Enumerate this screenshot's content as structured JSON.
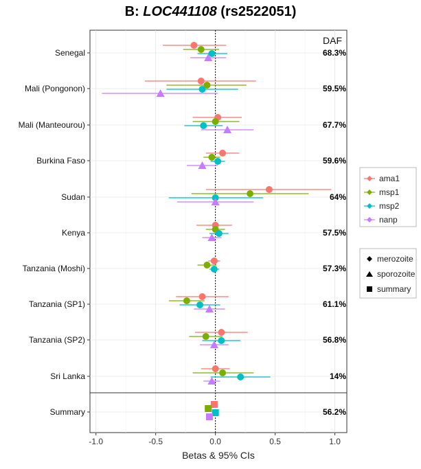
{
  "title": {
    "prefix": "B: ",
    "gene": "LOC441108",
    "suffix": " (rs2522051)"
  },
  "chart_data": {
    "type": "scatter",
    "title": "B: LOC441108 (rs2522051)",
    "xlabel": "Betas & 95% CIs",
    "xlim": [
      -1.05,
      1.1
    ],
    "xticks": [
      -1.0,
      -0.5,
      0.0,
      0.5,
      1.0
    ],
    "xtick_labels": [
      "-1.0",
      "-0.5",
      "0.0",
      "0.5",
      "1.0"
    ],
    "grid": true,
    "reference_line": 0.0,
    "daf_header": "DAF",
    "categories": [
      "Senegal",
      "Mali (Pongonon)",
      "Mali (Manteourou)",
      "Burkina Faso",
      "Sudan",
      "Kenya",
      "Tanzania (Moshi)",
      "Tanzania (SP1)",
      "Tanzania (SP2)",
      "Sri Lanka",
      "Summary"
    ],
    "daf": [
      "68.3%",
      "59.5%",
      "67.7%",
      "59.6%",
      "64%",
      "57.5%",
      "57.3%",
      "61.1%",
      "56.8%",
      "14%",
      "56.2%"
    ],
    "series": [
      {
        "name": "ama1",
        "color": "#F8766D",
        "values": [
          -0.18,
          -0.12,
          0.02,
          0.06,
          0.45,
          0.0,
          -0.01,
          -0.11,
          0.05,
          0.0,
          -0.01
        ],
        "lower": [
          -0.44,
          -0.59,
          -0.19,
          -0.08,
          -0.08,
          -0.16,
          -0.06,
          -0.33,
          -0.17,
          -0.12,
          -0.04
        ],
        "upper": [
          0.09,
          0.34,
          0.22,
          0.2,
          0.97,
          0.14,
          0.04,
          0.11,
          0.27,
          0.12,
          0.02
        ],
        "marker": [
          "circle",
          "circle",
          "circle",
          "circle",
          "circle",
          "circle",
          "circle",
          "circle",
          "circle",
          "circle",
          "square"
        ]
      },
      {
        "name": "msp1",
        "color": "#7CAE00",
        "values": [
          -0.12,
          -0.07,
          0.0,
          -0.03,
          0.29,
          0.0,
          -0.07,
          -0.24,
          -0.08,
          0.06,
          -0.06
        ],
        "lower": [
          -0.27,
          -0.41,
          -0.19,
          -0.1,
          -0.2,
          -0.08,
          -0.15,
          -0.39,
          -0.22,
          -0.19,
          -0.09
        ],
        "upper": [
          0.03,
          0.26,
          0.2,
          0.04,
          0.78,
          0.08,
          0.01,
          -0.09,
          0.06,
          0.32,
          -0.03
        ],
        "marker": [
          "circle",
          "circle",
          "circle",
          "circle",
          "circle",
          "circle",
          "circle",
          "circle",
          "circle",
          "circle",
          "square"
        ]
      },
      {
        "name": "msp2",
        "color": "#00BFC4",
        "values": [
          -0.03,
          -0.11,
          -0.1,
          0.02,
          0.0,
          0.03,
          -0.01,
          -0.13,
          0.05,
          0.21,
          0.0
        ],
        "lower": [
          -0.15,
          -0.41,
          -0.26,
          -0.04,
          -0.39,
          -0.05,
          -0.05,
          -0.3,
          -0.11,
          -0.04,
          -0.02
        ],
        "upper": [
          0.1,
          0.19,
          0.06,
          0.08,
          0.4,
          0.11,
          0.03,
          0.04,
          0.21,
          0.46,
          0.02
        ],
        "marker": [
          "circle",
          "circle",
          "circle",
          "circle",
          "circle",
          "circle",
          "circle",
          "circle",
          "circle",
          "circle",
          "square"
        ]
      },
      {
        "name": "nanp",
        "color": "#C77CFF",
        "values": [
          -0.06,
          -0.46,
          0.1,
          -0.11,
          0.0,
          -0.03,
          null,
          -0.05,
          -0.01,
          -0.03,
          -0.05
        ],
        "lower": [
          -0.21,
          -0.95,
          -0.12,
          -0.24,
          -0.32,
          -0.11,
          null,
          -0.18,
          -0.13,
          -0.1,
          -0.07
        ],
        "upper": [
          0.09,
          0.02,
          0.32,
          0.02,
          0.32,
          0.05,
          null,
          0.08,
          0.11,
          0.04,
          -0.03
        ],
        "marker": [
          "triangle",
          "triangle",
          "triangle",
          "triangle",
          "triangle",
          "triangle",
          "triangle",
          "triangle",
          "triangle",
          "triangle",
          "square"
        ]
      }
    ],
    "legend_position": "right",
    "legend_series": [
      "ama1",
      "msp1",
      "msp2",
      "nanp"
    ],
    "legend_shapes": [
      {
        "label": "merozoite",
        "shape": "circle"
      },
      {
        "label": "sporozoite",
        "shape": "triangle"
      },
      {
        "label": "summary",
        "shape": "square"
      }
    ]
  }
}
